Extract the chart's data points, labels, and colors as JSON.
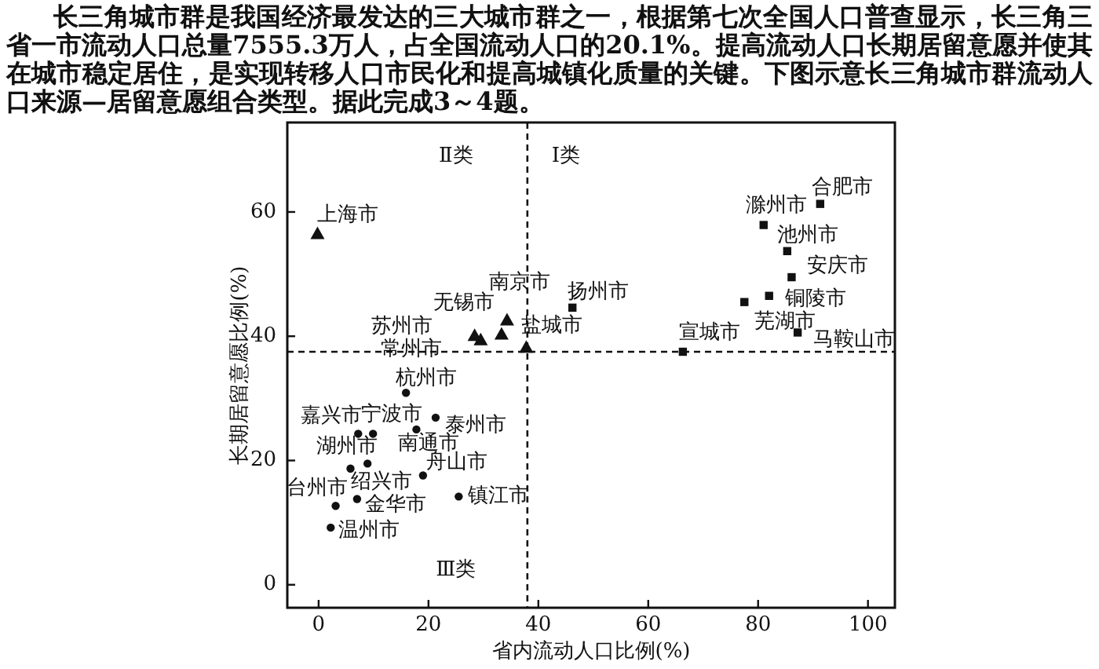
{
  "chart_data": {
    "type": "scatter",
    "title": "长三角城市群是我国经济最发达的三大城市群之一，根据第七次全国人口普查显示，长三角三省一市流动人口总量7555.3万人，占全国流动人口的20.1%。提高流动人口长期居留意愿并使其在城市稳定居住，是实现转移人口市民化和提高城镇化质量的关键。下图示意长三角城市群流动人口来源—居留意愿组合类型。据此完成3～4题。",
    "xlabel": "省内流动人口比例(%)",
    "ylabel": "长期居留意愿比例(%)",
    "xlim": [
      -5.7,
      104.9
    ],
    "ylim": [
      -3.7,
      74.4
    ],
    "xticks": [
      0,
      20,
      40,
      60,
      80,
      100
    ],
    "yticks": [
      0,
      20,
      40,
      60
    ],
    "grid": false,
    "ref_lines": [
      {
        "axis": "x",
        "value": 38,
        "line_style": "dashed"
      },
      {
        "axis": "y",
        "value": 37.5,
        "line_style": "dashed"
      }
    ],
    "series": [
      {
        "color": "#111111",
        "marker": "triangle",
        "x": [
          -0.2,
          28.4,
          29.5,
          33.3,
          34.3,
          37.8
        ],
        "values": [
          56.4,
          40.0,
          39.3,
          40.2,
          42.5,
          38.1
        ]
      },
      {
        "color": "#111111",
        "marker": "square",
        "x": [
          46.2,
          66.3,
          81.0,
          91.3,
          85.3,
          86.1,
          82.0,
          77.5,
          87.2
        ],
        "values": [
          44.6,
          37.5,
          57.9,
          61.3,
          53.7,
          49.5,
          46.5,
          45.5,
          40.6
        ]
      },
      {
        "color": "#111111",
        "marker": "circle",
        "x": [
          15.9,
          7.2,
          9.9,
          21.3,
          17.8,
          5.8,
          8.9,
          19.0,
          3.1,
          7.0,
          2.2,
          25.5
        ],
        "values": [
          30.9,
          24.3,
          24.3,
          26.9,
          25.0,
          18.7,
          19.5,
          17.6,
          12.7,
          13.8,
          9.2,
          14.2
        ]
      }
    ],
    "annotations": [
      "Ⅰ类",
      "Ⅱ类",
      "Ⅲ类",
      {
        "text": "上海市",
        "x": -0.2,
        "y": 56.4
      },
      {
        "text": "苏州市",
        "x": 28.4,
        "y": 40.0
      },
      {
        "text": "常州市",
        "x": 29.5,
        "y": 39.3
      },
      {
        "text": "无锡市",
        "x": 33.3,
        "y": 40.2
      },
      {
        "text": "南京市",
        "x": 34.3,
        "y": 42.5
      },
      {
        "text": "盐城市",
        "x": 37.8,
        "y": 38.1
      },
      {
        "text": "扬州市",
        "x": 46.2,
        "y": 44.6
      },
      {
        "text": "宣城市",
        "x": 66.3,
        "y": 37.5
      },
      {
        "text": "滁州市",
        "x": 81.0,
        "y": 57.9
      },
      {
        "text": "合肥市",
        "x": 91.3,
        "y": 61.3
      },
      {
        "text": "池州市",
        "x": 85.3,
        "y": 53.7
      },
      {
        "text": "安庆市",
        "x": 86.1,
        "y": 49.5
      },
      {
        "text": "铜陵市",
        "x": 82.0,
        "y": 46.5
      },
      {
        "text": "芜湖市",
        "x": 77.5,
        "y": 45.5
      },
      {
        "text": "马鞍山市",
        "x": 87.2,
        "y": 40.6
      },
      {
        "text": "杭州市",
        "x": 15.9,
        "y": 30.9
      },
      {
        "text": "嘉兴市",
        "x": 7.2,
        "y": 24.3
      },
      {
        "text": "宁波市",
        "x": 9.9,
        "y": 24.3
      },
      {
        "text": "泰州市",
        "x": 21.3,
        "y": 26.9
      },
      {
        "text": "南通市",
        "x": 17.8,
        "y": 25.0
      },
      {
        "text": "湖州市",
        "x": 5.8,
        "y": 18.7
      },
      {
        "text": "绍兴市",
        "x": 8.9,
        "y": 19.5
      },
      {
        "text": "舟山市",
        "x": 19.0,
        "y": 17.6
      },
      {
        "text": "台州市",
        "x": 3.1,
        "y": 12.7
      },
      {
        "text": "金华市",
        "x": 7.0,
        "y": 13.8
      },
      {
        "text": "温州市",
        "x": 2.2,
        "y": 9.2
      },
      {
        "text": "镇江市",
        "x": 25.5,
        "y": 14.2
      }
    ]
  }
}
